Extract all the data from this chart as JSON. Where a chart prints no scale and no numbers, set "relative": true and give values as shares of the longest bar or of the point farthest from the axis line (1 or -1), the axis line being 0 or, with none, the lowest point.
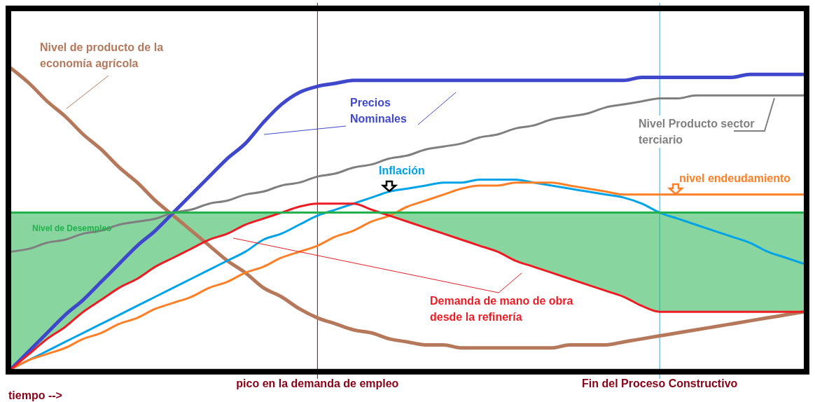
{
  "chart_data": {
    "type": "line",
    "relative": true,
    "legend": false,
    "grid": false,
    "tick_labels": "x",
    "marker": "none",
    "line_style": "solid",
    "xlabel": "tiempo -->",
    "categories": [
      null,
      null,
      null,
      null,
      null,
      null,
      null,
      null,
      null,
      null,
      null,
      null,
      null,
      null,
      null,
      null,
      null,
      "pico en la demanda de empleo",
      null,
      null,
      null,
      null,
      null,
      null,
      null,
      null,
      null,
      null,
      null,
      null,
      null,
      null,
      null,
      null,
      null,
      null,
      "Fin del Proceso Constructivo",
      null,
      null,
      null,
      null,
      null,
      null,
      null,
      null
    ],
    "series": [
      {
        "name": "Nivel de producto de la economía agrícola",
        "color": "#b5785a",
        "values": [
          1.0,
          0.95,
          0.89,
          0.84,
          0.78,
          0.73,
          0.67,
          0.62,
          0.56,
          0.51,
          0.46,
          0.41,
          0.36,
          0.32,
          0.27,
          0.24,
          0.2,
          0.17,
          0.15,
          0.13,
          0.12,
          0.1,
          0.09,
          0.08,
          0.08,
          0.07,
          0.07,
          0.07,
          0.07,
          0.07,
          0.07,
          0.08,
          0.08,
          0.08,
          0.09,
          0.1,
          0.11,
          0.12,
          0.13,
          0.14,
          0.15,
          0.16,
          0.17,
          0.18,
          0.19
        ]
      },
      {
        "name": "Precios Nominales",
        "color": "#3f48cc",
        "values": [
          0.0,
          0.06,
          0.12,
          0.18,
          0.23,
          0.29,
          0.35,
          0.41,
          0.46,
          0.52,
          0.58,
          0.64,
          0.7,
          0.75,
          0.82,
          0.88,
          0.92,
          0.94,
          0.95,
          0.96,
          0.96,
          0.96,
          0.96,
          0.96,
          0.96,
          0.96,
          0.96,
          0.96,
          0.96,
          0.96,
          0.96,
          0.96,
          0.96,
          0.96,
          0.96,
          0.97,
          0.97,
          0.97,
          0.97,
          0.97,
          0.97,
          0.98,
          0.98,
          0.98,
          0.98
        ]
      },
      {
        "name": "Nivel Producto sector terciario",
        "color": "#7f7f7f",
        "values": [
          0.39,
          0.4,
          0.42,
          0.43,
          0.45,
          0.46,
          0.48,
          0.49,
          0.5,
          0.52,
          0.53,
          0.55,
          0.56,
          0.58,
          0.59,
          0.61,
          0.62,
          0.64,
          0.65,
          0.67,
          0.68,
          0.7,
          0.71,
          0.73,
          0.74,
          0.75,
          0.77,
          0.78,
          0.8,
          0.81,
          0.83,
          0.84,
          0.85,
          0.87,
          0.88,
          0.89,
          0.9,
          0.9,
          0.91,
          0.91,
          0.91,
          0.91,
          0.91,
          0.91,
          0.91
        ]
      },
      {
        "name": "Inflación",
        "color": "#00a2e8",
        "values": [
          0.0,
          0.03,
          0.06,
          0.09,
          0.12,
          0.15,
          0.18,
          0.21,
          0.24,
          0.27,
          0.3,
          0.33,
          0.36,
          0.39,
          0.43,
          0.45,
          0.48,
          0.51,
          0.53,
          0.55,
          0.57,
          0.59,
          0.6,
          0.61,
          0.62,
          0.62,
          0.63,
          0.63,
          0.63,
          0.62,
          0.61,
          0.6,
          0.59,
          0.58,
          0.57,
          0.55,
          0.52,
          0.5,
          0.48,
          0.46,
          0.44,
          0.42,
          0.39,
          0.37,
          0.35
        ]
      },
      {
        "name": "nivel endeudamiento",
        "color": "#ff7f27",
        "values": [
          0.0,
          0.03,
          0.05,
          0.07,
          0.1,
          0.12,
          0.15,
          0.17,
          0.2,
          0.22,
          0.24,
          0.27,
          0.29,
          0.32,
          0.34,
          0.37,
          0.39,
          0.41,
          0.44,
          0.46,
          0.49,
          0.51,
          0.54,
          0.56,
          0.58,
          0.6,
          0.61,
          0.61,
          0.62,
          0.62,
          0.62,
          0.61,
          0.6,
          0.59,
          0.58,
          0.58,
          0.58,
          0.58,
          0.58,
          0.58,
          0.58,
          0.58,
          0.58,
          0.58,
          0.58
        ]
      },
      {
        "name": "Demanda de mano de obra desde la refinería",
        "color": "#ed1c24",
        "values": [
          0.0,
          0.05,
          0.1,
          0.14,
          0.19,
          0.23,
          0.27,
          0.3,
          0.34,
          0.37,
          0.4,
          0.43,
          0.45,
          0.48,
          0.5,
          0.52,
          0.54,
          0.55,
          0.55,
          0.55,
          0.53,
          0.51,
          0.49,
          0.47,
          0.45,
          0.43,
          0.41,
          0.39,
          0.36,
          0.34,
          0.32,
          0.3,
          0.28,
          0.26,
          0.24,
          0.21,
          0.19,
          0.19,
          0.19,
          0.19,
          0.19,
          0.19,
          0.19,
          0.19,
          0.19
        ]
      },
      {
        "name": "Nivel de Desempleo",
        "color": "#22b14c",
        "values": [
          0.52,
          0.52,
          0.52,
          0.52,
          0.52,
          0.52,
          0.52,
          0.52,
          0.52,
          0.52,
          0.52,
          0.52,
          0.52,
          0.52,
          0.52,
          0.52,
          0.52,
          0.52,
          0.52,
          0.52,
          0.52,
          0.52,
          0.52,
          0.52,
          0.52,
          0.52,
          0.52,
          0.52,
          0.52,
          0.52,
          0.52,
          0.52,
          0.52,
          0.52,
          0.52,
          0.52,
          0.52,
          0.52,
          0.52,
          0.52,
          0.52,
          0.52,
          0.52,
          0.52,
          0.52
        ],
        "lower": [
          0.0,
          0.05,
          0.1,
          0.14,
          0.19,
          0.23,
          0.27,
          0.3,
          0.34,
          0.37,
          0.4,
          0.43,
          0.45,
          0.48,
          0.5,
          0.52,
          0.52,
          0.52,
          0.52,
          0.52,
          0.52,
          0.51,
          0.49,
          0.47,
          0.45,
          0.43,
          0.41,
          0.39,
          0.36,
          0.34,
          0.32,
          0.3,
          0.28,
          0.26,
          0.24,
          0.21,
          0.19,
          0.19,
          0.19,
          0.19,
          0.19,
          0.19,
          0.19,
          0.19,
          0.19
        ],
        "upper": [
          0.52,
          0.52,
          0.52,
          0.52,
          0.52,
          0.52,
          0.52,
          0.52,
          0.52,
          0.52,
          0.52,
          0.52,
          0.52,
          0.52,
          0.52,
          0.52,
          0.52,
          0.52,
          0.52,
          0.52,
          0.52,
          0.52,
          0.52,
          0.52,
          0.52,
          0.52,
          0.52,
          0.52,
          0.52,
          0.52,
          0.52,
          0.52,
          0.52,
          0.52,
          0.52,
          0.52,
          0.52,
          0.52,
          0.52,
          0.52,
          0.52,
          0.52,
          0.52,
          0.52,
          0.52
        ]
      }
    ],
    "ref_lines": [
      {
        "axis": "x",
        "value": "pico en la demanda de empleo",
        "color": "#880015"
      },
      {
        "axis": "x",
        "value": "Fin del Proceso Constructivo",
        "color": "#3fa9d8"
      }
    ]
  }
}
